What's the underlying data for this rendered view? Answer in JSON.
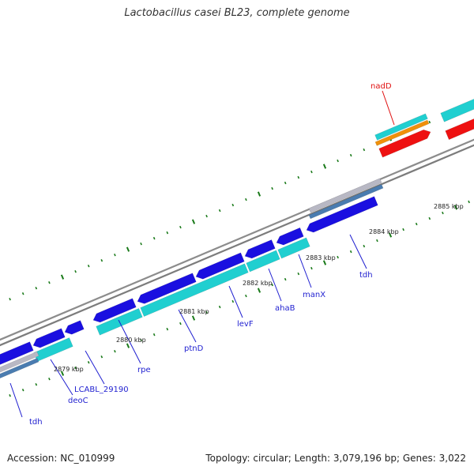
{
  "header": {
    "title": "Lactobacillus casei BL23, complete genome"
  },
  "footer": {
    "accession": "Accession: NC_010999",
    "topology": "Topology: circular; Length: 3,079,196 bp; Genes: 3,022"
  },
  "colors": {
    "backbone": "#888888",
    "gene_blue": "#1a0fe0",
    "gene_cyan": "#20cfd0",
    "gene_red": "#ee1111",
    "gene_orange": "#f0900a",
    "gene_grey": "#b8b8c4",
    "gene_steel": "#4a7cb0",
    "tick": "#1a7a1a",
    "label_blue": "#1f1fd0",
    "label_red": "#e01010"
  },
  "scale": {
    "tick_labels": [
      "2879 kbp",
      "2880 kbp",
      "2881 kbp",
      "2882 kbp",
      "2883 kbp",
      "2884 kbp",
      "2885 kbp"
    ]
  },
  "gene_labels": [
    {
      "name": "tdh",
      "color": "label_blue"
    },
    {
      "name": "deoC",
      "color": "label_blue"
    },
    {
      "name": "LCABL_29190",
      "color": "label_blue"
    },
    {
      "name": "rpe",
      "color": "label_blue"
    },
    {
      "name": "ptnD",
      "color": "label_blue"
    },
    {
      "name": "levF",
      "color": "label_blue"
    },
    {
      "name": "ahaB",
      "color": "label_blue"
    },
    {
      "name": "manX",
      "color": "label_blue"
    },
    {
      "name": "tdh",
      "color": "label_blue"
    },
    {
      "name": "nadD",
      "color": "label_red"
    }
  ]
}
